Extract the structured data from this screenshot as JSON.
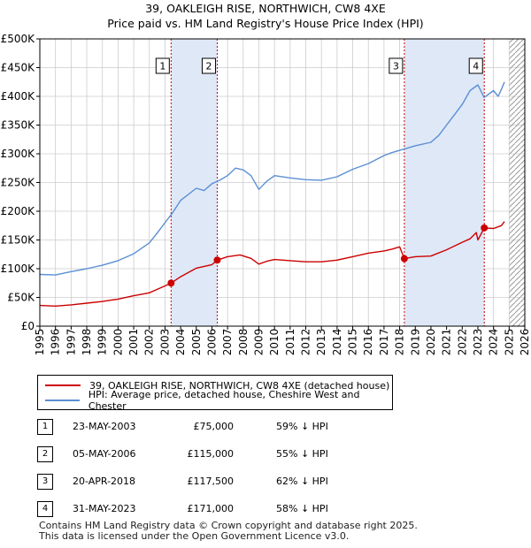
{
  "title_line1": "39, OAKLEIGH RISE, NORTHWICH, CW8 4XE",
  "title_line2": "Price paid vs. HM Land Registry's House Price Index (HPI)",
  "colors": {
    "red": "#cc0000",
    "blue": "#5b8fd4",
    "shade": "#dfe8f7",
    "grid": "#cccccc"
  },
  "chart_data": {
    "type": "line",
    "xlim": [
      1995,
      2026
    ],
    "ylim": [
      0,
      500000
    ],
    "x_ticks": [
      1995,
      1996,
      1997,
      1998,
      1999,
      2000,
      2001,
      2002,
      2003,
      2004,
      2005,
      2006,
      2007,
      2008,
      2009,
      2010,
      2011,
      2012,
      2013,
      2014,
      2015,
      2016,
      2017,
      2018,
      2019,
      2020,
      2021,
      2022,
      2023,
      2024,
      2025,
      2026
    ],
    "y_ticks": [
      0,
      50000,
      100000,
      150000,
      200000,
      250000,
      300000,
      350000,
      400000,
      450000,
      500000
    ],
    "y_tick_labels": [
      "£0",
      "£50K",
      "£100K",
      "£150K",
      "£200K",
      "£250K",
      "£300K",
      "£350K",
      "£400K",
      "£450K",
      "£500K"
    ],
    "series": [
      {
        "name": "39, OAKLEIGH RISE, NORTHWICH, CW8 4XE (detached house)",
        "color": "#cc0000",
        "points": [
          [
            1995.0,
            36000
          ],
          [
            1996.0,
            35000
          ],
          [
            1997.0,
            37000
          ],
          [
            1998.0,
            40000
          ],
          [
            1999.0,
            43000
          ],
          [
            2000.0,
            47000
          ],
          [
            2001.0,
            53000
          ],
          [
            2002.0,
            58000
          ],
          [
            2002.5,
            64000
          ],
          [
            2003.0,
            70000
          ],
          [
            2003.39,
            75000
          ],
          [
            2004.0,
            86000
          ],
          [
            2005.0,
            101000
          ],
          [
            2006.0,
            107000
          ],
          [
            2006.34,
            115000
          ],
          [
            2007.0,
            121000
          ],
          [
            2007.8,
            124000
          ],
          [
            2008.5,
            118000
          ],
          [
            2009.0,
            108000
          ],
          [
            2009.5,
            113000
          ],
          [
            2010.0,
            116000
          ],
          [
            2011.0,
            114000
          ],
          [
            2012.0,
            112000
          ],
          [
            2013.0,
            112000
          ],
          [
            2014.0,
            115000
          ],
          [
            2015.0,
            121000
          ],
          [
            2016.0,
            127000
          ],
          [
            2017.0,
            131000
          ],
          [
            2017.5,
            134000
          ],
          [
            2018.0,
            138000
          ],
          [
            2018.3,
            117500
          ],
          [
            2019.0,
            121000
          ],
          [
            2020.0,
            122000
          ],
          [
            2021.0,
            133000
          ],
          [
            2022.0,
            146000
          ],
          [
            2022.5,
            152000
          ],
          [
            2022.9,
            163000
          ],
          [
            2023.0,
            150000
          ],
          [
            2023.41,
            171000
          ],
          [
            2024.0,
            170000
          ],
          [
            2024.5,
            175000
          ],
          [
            2024.7,
            182000
          ]
        ]
      },
      {
        "name": "HPI: Average price, detached house, Cheshire West and Chester",
        "color": "#5b8fd4",
        "points": [
          [
            1995.0,
            90000
          ],
          [
            1996.0,
            89000
          ],
          [
            1997.0,
            95000
          ],
          [
            1998.0,
            100000
          ],
          [
            1999.0,
            106000
          ],
          [
            2000.0,
            114000
          ],
          [
            2001.0,
            126000
          ],
          [
            2002.0,
            145000
          ],
          [
            2002.5,
            162000
          ],
          [
            2003.0,
            180000
          ],
          [
            2003.5,
            198000
          ],
          [
            2004.0,
            219000
          ],
          [
            2005.0,
            240000
          ],
          [
            2005.5,
            236000
          ],
          [
            2006.0,
            248000
          ],
          [
            2006.5,
            254000
          ],
          [
            2007.0,
            262000
          ],
          [
            2007.5,
            275000
          ],
          [
            2008.0,
            272000
          ],
          [
            2008.5,
            262000
          ],
          [
            2009.0,
            238000
          ],
          [
            2009.5,
            252000
          ],
          [
            2010.0,
            262000
          ],
          [
            2011.0,
            258000
          ],
          [
            2012.0,
            255000
          ],
          [
            2013.0,
            254000
          ],
          [
            2014.0,
            260000
          ],
          [
            2015.0,
            273000
          ],
          [
            2016.0,
            283000
          ],
          [
            2017.0,
            297000
          ],
          [
            2017.5,
            302000
          ],
          [
            2018.0,
            306000
          ],
          [
            2019.0,
            314000
          ],
          [
            2020.0,
            320000
          ],
          [
            2020.5,
            332000
          ],
          [
            2021.0,
            350000
          ],
          [
            2021.5,
            368000
          ],
          [
            2022.0,
            386000
          ],
          [
            2022.5,
            410000
          ],
          [
            2023.0,
            420000
          ],
          [
            2023.4,
            398000
          ],
          [
            2024.0,
            410000
          ],
          [
            2024.3,
            400000
          ],
          [
            2024.5,
            412000
          ],
          [
            2024.7,
            425000
          ]
        ]
      }
    ],
    "sales": [
      {
        "id": "1",
        "x": 2003.39,
        "price": 75000
      },
      {
        "id": "2",
        "x": 2006.34,
        "price": 115000
      },
      {
        "id": "3",
        "x": 2018.3,
        "price": 117500
      },
      {
        "id": "4",
        "x": 2023.41,
        "price": 171000
      }
    ],
    "shaded_regions": [
      [
        2003.39,
        2006.34
      ],
      [
        2018.3,
        2023.41
      ]
    ],
    "hatch_from": 2025.0
  },
  "legend": {
    "red_label": "39, OAKLEIGH RISE, NORTHWICH, CW8 4XE (detached house)",
    "blue_label": "HPI: Average price, detached house, Cheshire West and Chester"
  },
  "sales_table": [
    {
      "num": "1",
      "date": "23-MAY-2003",
      "price": "£75,000",
      "hpi": "59% ↓ HPI"
    },
    {
      "num": "2",
      "date": "05-MAY-2006",
      "price": "£115,000",
      "hpi": "55% ↓ HPI"
    },
    {
      "num": "3",
      "date": "20-APR-2018",
      "price": "£117,500",
      "hpi": "62% ↓ HPI"
    },
    {
      "num": "4",
      "date": "31-MAY-2023",
      "price": "£171,000",
      "hpi": "58% ↓ HPI"
    }
  ],
  "footer_line1": "Contains HM Land Registry data © Crown copyright and database right 2025.",
  "footer_line2": "This data is licensed under the Open Government Licence v3.0."
}
